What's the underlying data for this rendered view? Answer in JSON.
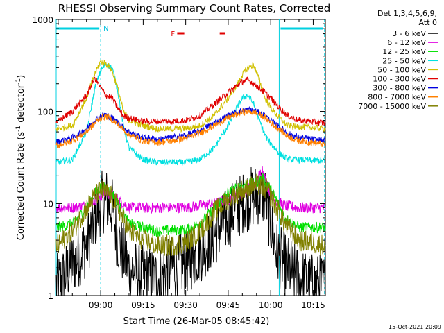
{
  "chart_data": {
    "type": "line",
    "title": "RHESSI Observing Summary Count Rates, Corrected",
    "xlabel": "Start Time (26-Mar-05 08:45:42)",
    "ylabel_main": "Corrected Count Rate (s",
    "ylabel_sup1": "-1",
    "ylabel_mid": " detector",
    "ylabel_sup2": "-1",
    "ylabel_end": ")",
    "yscale": "log",
    "ylim": [
      1,
      1000
    ],
    "xlim_minutes": [
      -15.7,
      79.3
    ],
    "x_ticks": [
      {
        "m": 0,
        "label": "09:00"
      },
      {
        "m": 15,
        "label": "09:15"
      },
      {
        "m": 30,
        "label": "09:30"
      },
      {
        "m": 45,
        "label": "09:45"
      },
      {
        "m": 60,
        "label": "10:00"
      },
      {
        "m": 75,
        "label": "10:15"
      }
    ],
    "y_ticks": [
      {
        "v": 1,
        "label": "1"
      },
      {
        "v": 10,
        "label": "10"
      },
      {
        "v": 100,
        "label": "100"
      },
      {
        "v": 1000,
        "label": "1000"
      }
    ],
    "legend_header": [
      "Det 1,3,4,5,6,9,",
      "Att 0"
    ],
    "series": [
      {
        "name": "3 - 6 keV",
        "color": "#000000",
        "points": [
          [
            -15,
            1.3
          ],
          [
            -10,
            2.2
          ],
          [
            -5,
            3.5
          ],
          [
            -2,
            7
          ],
          [
            0,
            10
          ],
          [
            2,
            11
          ],
          [
            4,
            9
          ],
          [
            6,
            4
          ],
          [
            10,
            2
          ],
          [
            15,
            1.6
          ],
          [
            20,
            1.5
          ],
          [
            25,
            2
          ],
          [
            30,
            2.2
          ],
          [
            35,
            3
          ],
          [
            40,
            4.5
          ],
          [
            45,
            7
          ],
          [
            48,
            9
          ],
          [
            52,
            11
          ],
          [
            56,
            13
          ],
          [
            58,
            12
          ],
          [
            60,
            6
          ],
          [
            62,
            3
          ],
          [
            65,
            2.2
          ],
          [
            70,
            1.5
          ],
          [
            75,
            1.3
          ],
          [
            79,
            1.3
          ]
        ]
      },
      {
        "name": "6 - 12 keV",
        "color": "#e000e0",
        "points": [
          [
            -15,
            9
          ],
          [
            -10,
            9
          ],
          [
            -5,
            9.5
          ],
          [
            0,
            12
          ],
          [
            2,
            13
          ],
          [
            5,
            12
          ],
          [
            8,
            10
          ],
          [
            10,
            9
          ],
          [
            20,
            9
          ],
          [
            30,
            9
          ],
          [
            40,
            10
          ],
          [
            45,
            11
          ],
          [
            50,
            13
          ],
          [
            55,
            17
          ],
          [
            57,
            24
          ],
          [
            59,
            15
          ],
          [
            61,
            11
          ],
          [
            65,
            9.5
          ],
          [
            70,
            9
          ],
          [
            79,
            9
          ]
        ]
      },
      {
        "name": "12 - 25 keV",
        "color": "#00e000",
        "points": [
          [
            -15,
            5.5
          ],
          [
            -10,
            6
          ],
          [
            -5,
            9
          ],
          [
            -2,
            13
          ],
          [
            0,
            15
          ],
          [
            2,
            15
          ],
          [
            4,
            13
          ],
          [
            7,
            9
          ],
          [
            10,
            6
          ],
          [
            15,
            5.5
          ],
          [
            20,
            5
          ],
          [
            30,
            5.2
          ],
          [
            35,
            6
          ],
          [
            40,
            9
          ],
          [
            45,
            13
          ],
          [
            50,
            16
          ],
          [
            55,
            17
          ],
          [
            57,
            19
          ],
          [
            59,
            16
          ],
          [
            62,
            11
          ],
          [
            65,
            7
          ],
          [
            70,
            5.5
          ],
          [
            79,
            5.5
          ]
        ]
      },
      {
        "name": "25 - 50 keV",
        "color": "#00e0e0",
        "points": [
          [
            -15,
            28
          ],
          [
            -10,
            30
          ],
          [
            -5,
            60
          ],
          [
            -2,
            180
          ],
          [
            0,
            280
          ],
          [
            2,
            330
          ],
          [
            4,
            300
          ],
          [
            6,
            170
          ],
          [
            8,
            70
          ],
          [
            10,
            40
          ],
          [
            15,
            30
          ],
          [
            20,
            28
          ],
          [
            30,
            28
          ],
          [
            35,
            30
          ],
          [
            40,
            40
          ],
          [
            45,
            70
          ],
          [
            48,
            110
          ],
          [
            50,
            140
          ],
          [
            52,
            150
          ],
          [
            54,
            120
          ],
          [
            56,
            80
          ],
          [
            58,
            55
          ],
          [
            60,
            45
          ],
          [
            63,
            35
          ],
          [
            66,
            30
          ],
          [
            79,
            29
          ]
        ]
      },
      {
        "name": "50 - 100 keV",
        "color": "#d0c000",
        "points": [
          [
            -15,
            65
          ],
          [
            -10,
            70
          ],
          [
            -5,
            140
          ],
          [
            -2,
            260
          ],
          [
            0,
            350
          ],
          [
            2,
            330
          ],
          [
            4,
            280
          ],
          [
            6,
            180
          ],
          [
            8,
            100
          ],
          [
            10,
            80
          ],
          [
            15,
            70
          ],
          [
            20,
            65
          ],
          [
            30,
            65
          ],
          [
            35,
            70
          ],
          [
            40,
            90
          ],
          [
            45,
            140
          ],
          [
            48,
            190
          ],
          [
            50,
            250
          ],
          [
            52,
            300
          ],
          [
            54,
            320
          ],
          [
            56,
            220
          ],
          [
            58,
            140
          ],
          [
            60,
            110
          ],
          [
            63,
            85
          ],
          [
            66,
            70
          ],
          [
            79,
            65
          ]
        ]
      },
      {
        "name": "100 - 300 keV",
        "color": "#e00000",
        "points": [
          [
            -15,
            78
          ],
          [
            -10,
            100
          ],
          [
            -5,
            150
          ],
          [
            -2,
            230
          ],
          [
            0,
            180
          ],
          [
            2,
            150
          ],
          [
            4,
            140
          ],
          [
            6,
            110
          ],
          [
            8,
            90
          ],
          [
            10,
            85
          ],
          [
            15,
            78
          ],
          [
            20,
            78
          ],
          [
            25,
            78
          ],
          [
            30,
            80
          ],
          [
            35,
            90
          ],
          [
            40,
            120
          ],
          [
            45,
            160
          ],
          [
            48,
            190
          ],
          [
            50,
            210
          ],
          [
            52,
            220
          ],
          [
            54,
            200
          ],
          [
            56,
            180
          ],
          [
            58,
            160
          ],
          [
            60,
            140
          ],
          [
            63,
            110
          ],
          [
            66,
            90
          ],
          [
            70,
            80
          ],
          [
            79,
            75
          ]
        ]
      },
      {
        "name": "300 - 800 keV",
        "color": "#0000e0",
        "points": [
          [
            -15,
            47
          ],
          [
            -10,
            52
          ],
          [
            -5,
            65
          ],
          [
            -2,
            80
          ],
          [
            0,
            90
          ],
          [
            2,
            92
          ],
          [
            4,
            85
          ],
          [
            7,
            72
          ],
          [
            10,
            60
          ],
          [
            15,
            52
          ],
          [
            20,
            50
          ],
          [
            25,
            52
          ],
          [
            30,
            55
          ],
          [
            35,
            62
          ],
          [
            40,
            75
          ],
          [
            45,
            90
          ],
          [
            48,
            98
          ],
          [
            50,
            102
          ],
          [
            52,
            105
          ],
          [
            54,
            102
          ],
          [
            56,
            97
          ],
          [
            58,
            90
          ],
          [
            60,
            80
          ],
          [
            63,
            68
          ],
          [
            66,
            58
          ],
          [
            70,
            52
          ],
          [
            79,
            48
          ]
        ]
      },
      {
        "name": "800 - 7000 keV",
        "color": "#ff8000",
        "points": [
          [
            -15,
            43
          ],
          [
            -10,
            48
          ],
          [
            -5,
            60
          ],
          [
            -2,
            75
          ],
          [
            0,
            86
          ],
          [
            2,
            88
          ],
          [
            4,
            82
          ],
          [
            7,
            68
          ],
          [
            10,
            56
          ],
          [
            15,
            48
          ],
          [
            20,
            46
          ],
          [
            25,
            48
          ],
          [
            30,
            51
          ],
          [
            35,
            58
          ],
          [
            40,
            70
          ],
          [
            45,
            85
          ],
          [
            48,
            93
          ],
          [
            50,
            98
          ],
          [
            52,
            100
          ],
          [
            54,
            98
          ],
          [
            56,
            93
          ],
          [
            58,
            86
          ],
          [
            60,
            76
          ],
          [
            63,
            64
          ],
          [
            66,
            54
          ],
          [
            70,
            48
          ],
          [
            79,
            44
          ]
        ]
      },
      {
        "name": "7000 - 15000 keV",
        "color": "#808000",
        "points": [
          [
            -15,
            3.5
          ],
          [
            -10,
            5
          ],
          [
            -5,
            9
          ],
          [
            -2,
            12
          ],
          [
            0,
            14
          ],
          [
            2,
            13
          ],
          [
            4,
            12
          ],
          [
            7,
            8
          ],
          [
            10,
            5
          ],
          [
            15,
            4
          ],
          [
            20,
            3.5
          ],
          [
            25,
            3.5
          ],
          [
            30,
            3.8
          ],
          [
            35,
            5
          ],
          [
            40,
            8
          ],
          [
            45,
            11
          ],
          [
            50,
            14
          ],
          [
            55,
            16
          ],
          [
            57,
            15
          ],
          [
            59,
            14
          ],
          [
            62,
            9
          ],
          [
            65,
            6
          ],
          [
            70,
            4
          ],
          [
            79,
            3.5
          ]
        ]
      }
    ],
    "grid": false,
    "legend": "right",
    "markers": {
      "N": "N",
      "F": "F",
      "N_start_m": -15.7,
      "N_end_m": 0,
      "gap_start_m": 0,
      "gap_end_m": 63,
      "N2_start_m": 63,
      "N2_end_m": 79.3,
      "F_segments": [
        [
          27,
          29.5
        ],
        [
          42,
          44
        ]
      ],
      "dashed_lines_m": [
        0,
        79
      ],
      "solid_lines_m": [
        -15.7,
        63
      ]
    }
  },
  "footer_timestamp": "15-Oct-2021 20:09"
}
